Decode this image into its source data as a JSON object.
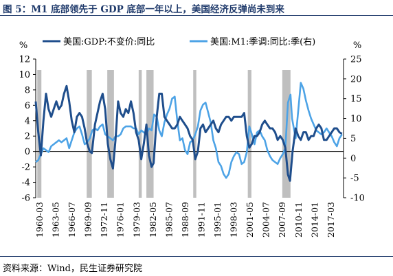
{
  "title": "图 5：M1 底部领先于 GDP 底部一年以上，美国经济反弹尚未到来",
  "source": "资料来源：Wind，民生证券研究院",
  "colors": {
    "gdp": "#1f4e8c",
    "m1": "#4da3e6",
    "recession": "#bfbfbf",
    "accent": "#1f3a6b"
  },
  "chart_data": {
    "type": "line",
    "left_unit": "%",
    "right_unit": "%",
    "ylim_left": [
      -6,
      12
    ],
    "ylim_right": [
      -10,
      25
    ],
    "left_ticks": [
      -6,
      -4,
      -2,
      0,
      2,
      4,
      6,
      8,
      10,
      12
    ],
    "right_ticks": [
      -10,
      -5,
      0,
      5,
      10,
      15,
      20,
      25
    ],
    "x_tick_labels": [
      "1960-03",
      "1963-05",
      "1966-07",
      "1969-09",
      "1972-11",
      "1976-01",
      "1979-03",
      "1982-05",
      "1985-07",
      "1988-09",
      "1991-11",
      "1995-01",
      "1998-03",
      "2001-05",
      "2004-07",
      "2007-09",
      "2010-11",
      "2014-01",
      "2017-03"
    ],
    "x_range": [
      1960.0,
      2019.8
    ],
    "legend_placement": "top",
    "recessions": [
      [
        1960.3,
        1961.1
      ],
      [
        1969.9,
        1970.9
      ],
      [
        1973.9,
        1975.2
      ],
      [
        1980.0,
        1980.6
      ],
      [
        1981.5,
        1982.9
      ],
      [
        1990.6,
        1991.2
      ],
      [
        2001.2,
        2001.9
      ],
      [
        2007.9,
        2009.5
      ]
    ],
    "series": [
      {
        "name": "美国:GDP:不变价:同比",
        "axis": "left",
        "points": [
          [
            1960.0,
            6.5
          ],
          [
            1960.5,
            2.5
          ],
          [
            1961.0,
            -0.5
          ],
          [
            1961.5,
            4.0
          ],
          [
            1962.0,
            7.5
          ],
          [
            1962.5,
            5.5
          ],
          [
            1963.0,
            4.5
          ],
          [
            1963.5,
            5.5
          ],
          [
            1964.0,
            6.5
          ],
          [
            1964.5,
            5.5
          ],
          [
            1965.0,
            6.0
          ],
          [
            1965.5,
            7.5
          ],
          [
            1966.0,
            8.5
          ],
          [
            1966.5,
            6.5
          ],
          [
            1967.0,
            4.0
          ],
          [
            1967.5,
            2.5
          ],
          [
            1968.0,
            4.5
          ],
          [
            1968.5,
            5.0
          ],
          [
            1969.0,
            4.5
          ],
          [
            1969.5,
            3.0
          ],
          [
            1970.0,
            1.0
          ],
          [
            1970.5,
            0.0
          ],
          [
            1970.9,
            -0.2
          ],
          [
            1971.5,
            3.5
          ],
          [
            1972.0,
            5.0
          ],
          [
            1972.5,
            6.5
          ],
          [
            1973.0,
            7.5
          ],
          [
            1973.5,
            5.5
          ],
          [
            1974.0,
            1.0
          ],
          [
            1974.5,
            -1.0
          ],
          [
            1975.0,
            -2.2
          ],
          [
            1975.5,
            1.5
          ],
          [
            1976.0,
            6.5
          ],
          [
            1976.5,
            5.0
          ],
          [
            1977.0,
            4.5
          ],
          [
            1977.5,
            5.5
          ],
          [
            1978.0,
            5.0
          ],
          [
            1978.5,
            6.5
          ],
          [
            1979.0,
            5.0
          ],
          [
            1979.5,
            2.5
          ],
          [
            1980.0,
            1.5
          ],
          [
            1980.5,
            -1.0
          ],
          [
            1981.0,
            1.0
          ],
          [
            1981.5,
            3.5
          ],
          [
            1982.0,
            -0.5
          ],
          [
            1982.5,
            -2.0
          ],
          [
            1982.9,
            -1.5
          ],
          [
            1983.5,
            4.5
          ],
          [
            1984.0,
            7.5
          ],
          [
            1984.5,
            7.5
          ],
          [
            1985.0,
            4.5
          ],
          [
            1985.5,
            4.0
          ],
          [
            1986.0,
            3.5
          ],
          [
            1986.5,
            3.0
          ],
          [
            1987.0,
            3.0
          ],
          [
            1987.5,
            3.5
          ],
          [
            1988.0,
            4.5
          ],
          [
            1988.5,
            4.0
          ],
          [
            1989.0,
            3.5
          ],
          [
            1989.5,
            3.0
          ],
          [
            1990.0,
            2.0
          ],
          [
            1990.5,
            1.5
          ],
          [
            1991.0,
            -1.0
          ],
          [
            1991.5,
            0.0
          ],
          [
            1992.0,
            3.0
          ],
          [
            1992.5,
            3.5
          ],
          [
            1993.0,
            2.5
          ],
          [
            1993.5,
            3.0
          ],
          [
            1994.0,
            3.5
          ],
          [
            1994.5,
            4.0
          ],
          [
            1995.0,
            3.0
          ],
          [
            1995.5,
            2.5
          ],
          [
            1996.0,
            3.5
          ],
          [
            1996.5,
            4.0
          ],
          [
            1997.0,
            4.5
          ],
          [
            1997.5,
            4.5
          ],
          [
            1998.0,
            4.0
          ],
          [
            1998.5,
            4.5
          ],
          [
            1999.0,
            4.5
          ],
          [
            1999.5,
            4.5
          ],
          [
            2000.0,
            4.5
          ],
          [
            2000.5,
            5.0
          ],
          [
            2001.0,
            2.0
          ],
          [
            2001.5,
            0.5
          ],
          [
            2002.0,
            1.0
          ],
          [
            2002.5,
            2.0
          ],
          [
            2003.0,
            2.0
          ],
          [
            2003.5,
            2.5
          ],
          [
            2004.0,
            3.5
          ],
          [
            2004.5,
            4.0
          ],
          [
            2005.0,
            3.5
          ],
          [
            2005.5,
            3.0
          ],
          [
            2006.0,
            3.0
          ],
          [
            2006.5,
            2.5
          ],
          [
            2007.0,
            1.5
          ],
          [
            2007.5,
            2.0
          ],
          [
            2008.0,
            1.5
          ],
          [
            2008.5,
            0.5
          ],
          [
            2009.0,
            -3.0
          ],
          [
            2009.4,
            -3.8
          ],
          [
            2009.9,
            0.0
          ],
          [
            2010.5,
            3.0
          ],
          [
            2011.0,
            2.0
          ],
          [
            2011.5,
            1.5
          ],
          [
            2012.0,
            2.5
          ],
          [
            2012.5,
            2.5
          ],
          [
            2013.0,
            1.5
          ],
          [
            2013.5,
            2.0
          ],
          [
            2014.0,
            2.0
          ],
          [
            2014.5,
            3.0
          ],
          [
            2015.0,
            3.5
          ],
          [
            2015.5,
            3.0
          ],
          [
            2016.0,
            1.5
          ],
          [
            2016.5,
            1.5
          ],
          [
            2017.0,
            2.0
          ],
          [
            2017.5,
            2.5
          ],
          [
            2018.0,
            3.0
          ],
          [
            2018.5,
            3.0
          ],
          [
            2019.0,
            2.5
          ],
          [
            2019.5,
            2.3
          ]
        ]
      },
      {
        "name": "美国:M1:季调:同比:季(右)",
        "axis": "right",
        "points": [
          [
            1960.0,
            -1.0
          ],
          [
            1960.5,
            -0.5
          ],
          [
            1961.0,
            1.0
          ],
          [
            1961.5,
            2.5
          ],
          [
            1962.0,
            2.0
          ],
          [
            1962.5,
            1.5
          ],
          [
            1963.0,
            3.0
          ],
          [
            1963.5,
            3.5
          ],
          [
            1964.0,
            4.0
          ],
          [
            1964.5,
            4.5
          ],
          [
            1965.0,
            4.0
          ],
          [
            1965.5,
            4.5
          ],
          [
            1966.0,
            5.0
          ],
          [
            1966.5,
            2.5
          ],
          [
            1967.0,
            4.5
          ],
          [
            1967.5,
            6.5
          ],
          [
            1968.0,
            7.5
          ],
          [
            1968.5,
            8.0
          ],
          [
            1969.0,
            6.0
          ],
          [
            1969.5,
            3.5
          ],
          [
            1970.0,
            4.0
          ],
          [
            1970.5,
            5.0
          ],
          [
            1971.0,
            7.0
          ],
          [
            1971.5,
            7.5
          ],
          [
            1972.0,
            7.0
          ],
          [
            1972.5,
            8.0
          ],
          [
            1973.0,
            8.5
          ],
          [
            1973.5,
            6.0
          ],
          [
            1974.0,
            5.5
          ],
          [
            1974.5,
            5.0
          ],
          [
            1975.0,
            4.5
          ],
          [
            1975.5,
            5.5
          ],
          [
            1976.0,
            5.5
          ],
          [
            1976.5,
            6.0
          ],
          [
            1977.0,
            7.5
          ],
          [
            1977.5,
            8.0
          ],
          [
            1978.0,
            8.0
          ],
          [
            1978.5,
            8.0
          ],
          [
            1979.0,
            7.5
          ],
          [
            1979.5,
            7.5
          ],
          [
            1980.0,
            6.0
          ],
          [
            1980.5,
            7.0
          ],
          [
            1981.0,
            6.5
          ],
          [
            1981.5,
            6.0
          ],
          [
            1982.0,
            7.5
          ],
          [
            1982.5,
            7.0
          ],
          [
            1983.0,
            11.0
          ],
          [
            1983.5,
            10.5
          ],
          [
            1984.0,
            7.0
          ],
          [
            1984.5,
            5.5
          ],
          [
            1985.0,
            9.0
          ],
          [
            1985.5,
            11.0
          ],
          [
            1986.0,
            12.5
          ],
          [
            1986.5,
            15.0
          ],
          [
            1987.0,
            15.5
          ],
          [
            1987.5,
            9.5
          ],
          [
            1988.0,
            4.5
          ],
          [
            1988.5,
            5.0
          ],
          [
            1989.0,
            2.0
          ],
          [
            1989.5,
            1.0
          ],
          [
            1990.0,
            4.0
          ],
          [
            1990.5,
            4.5
          ],
          [
            1991.0,
            6.0
          ],
          [
            1991.5,
            8.0
          ],
          [
            1992.0,
            12.0
          ],
          [
            1992.5,
            13.5
          ],
          [
            1993.0,
            14.0
          ],
          [
            1993.5,
            11.5
          ],
          [
            1994.0,
            9.0
          ],
          [
            1994.5,
            4.5
          ],
          [
            1995.0,
            2.5
          ],
          [
            1995.5,
            -1.0
          ],
          [
            1996.0,
            -2.0
          ],
          [
            1996.5,
            -4.0
          ],
          [
            1997.0,
            -5.0
          ],
          [
            1997.5,
            -4.0
          ],
          [
            1998.0,
            -1.0
          ],
          [
            1998.5,
            0.5
          ],
          [
            1999.0,
            1.5
          ],
          [
            1999.5,
            1.0
          ],
          [
            2000.0,
            -1.5
          ],
          [
            2000.5,
            -1.0
          ],
          [
            2001.0,
            1.5
          ],
          [
            2001.5,
            8.0
          ],
          [
            2002.0,
            6.0
          ],
          [
            2002.5,
            3.5
          ],
          [
            2003.0,
            6.5
          ],
          [
            2003.5,
            7.0
          ],
          [
            2004.0,
            5.5
          ],
          [
            2004.5,
            4.5
          ],
          [
            2005.0,
            2.0
          ],
          [
            2005.5,
            0.5
          ],
          [
            2006.0,
            -0.5
          ],
          [
            2006.5,
            -1.0
          ],
          [
            2007.0,
            -1.5
          ],
          [
            2007.5,
            0.0
          ],
          [
            2008.0,
            1.0
          ],
          [
            2008.5,
            2.5
          ],
          [
            2009.0,
            14.0
          ],
          [
            2009.5,
            16.0
          ],
          [
            2009.8,
            10.0
          ],
          [
            2010.5,
            5.0
          ],
          [
            2011.0,
            12.0
          ],
          [
            2011.5,
            19.0
          ],
          [
            2012.0,
            17.5
          ],
          [
            2012.5,
            14.5
          ],
          [
            2013.0,
            12.0
          ],
          [
            2013.5,
            10.0
          ],
          [
            2014.0,
            8.5
          ],
          [
            2014.5,
            7.0
          ],
          [
            2015.0,
            6.5
          ],
          [
            2015.5,
            6.0
          ],
          [
            2016.0,
            6.5
          ],
          [
            2016.5,
            7.5
          ],
          [
            2017.0,
            6.5
          ],
          [
            2017.5,
            5.5
          ],
          [
            2018.0,
            4.0
          ],
          [
            2018.5,
            3.0
          ],
          [
            2019.0,
            5.0
          ],
          [
            2019.5,
            6.0
          ]
        ]
      }
    ]
  }
}
